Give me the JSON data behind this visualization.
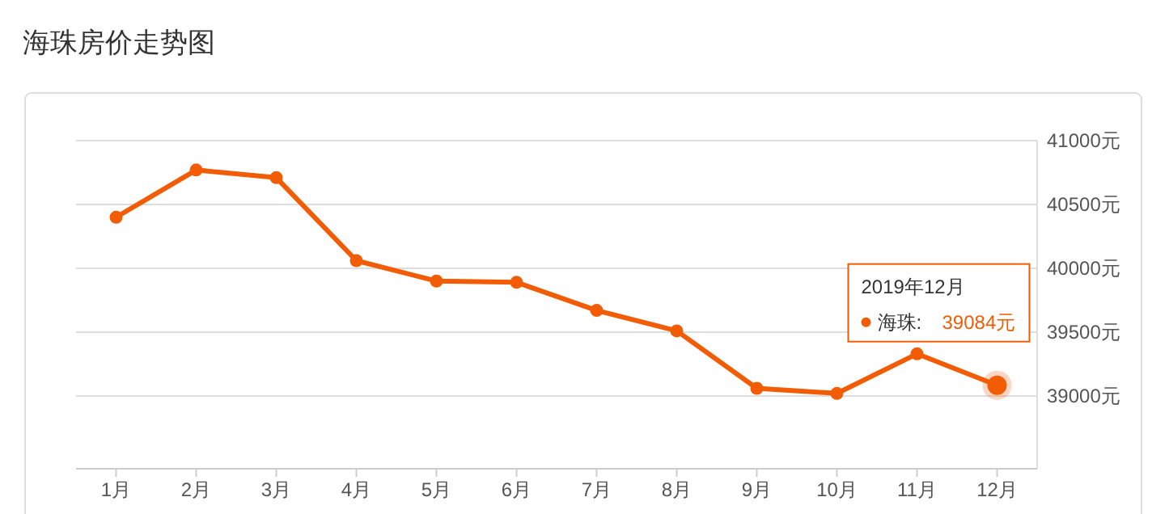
{
  "chart_data": {
    "type": "line",
    "title": "海珠房价走势图",
    "categories": [
      "1月",
      "2月",
      "3月",
      "4月",
      "5月",
      "6月",
      "7月",
      "8月",
      "9月",
      "10月",
      "11月",
      "12月"
    ],
    "series": [
      {
        "name": "海珠",
        "color": "#f25c05",
        "values": [
          40400,
          40770,
          40710,
          40060,
          39900,
          39890,
          39670,
          39510,
          39060,
          39020,
          39330,
          39084
        ],
        "value_labels": [
          null,
          null,
          null,
          null,
          null,
          null,
          null,
          null,
          null,
          null,
          null,
          "39084元"
        ]
      }
    ],
    "ylim": [
      38430,
      41000
    ],
    "yticks": [
      {
        "value": 39000,
        "label": "39000元"
      },
      {
        "value": 39500,
        "label": "39500元"
      },
      {
        "value": 40000,
        "label": "40000元"
      },
      {
        "value": 40500,
        "label": "40500元"
      },
      {
        "value": 41000,
        "label": "41000元"
      }
    ],
    "annotations": [
      "2019年12月",
      ":"
    ],
    "grid": "y",
    "marker": "circle",
    "line_style": "solid",
    "legend": "right"
  }
}
